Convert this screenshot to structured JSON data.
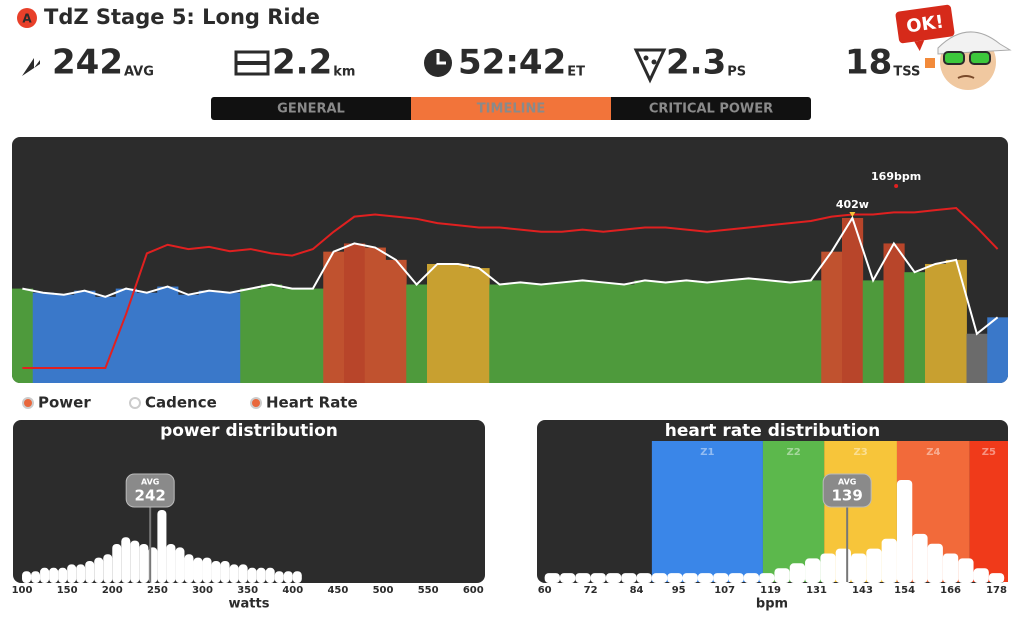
{
  "header": {
    "badge": "A",
    "title": "TdZ Stage 5: Long Ride"
  },
  "stats": [
    {
      "value": 242,
      "unit": "AVG"
    },
    {
      "value": 2.2,
      "unit": "km"
    },
    {
      "value": "52:42",
      "unit": "ET"
    },
    {
      "value": 2.3,
      "unit": "PS"
    },
    {
      "value": 18,
      "unit": "TSS"
    }
  ],
  "avatar_text": "OK!",
  "tabs": {
    "items": [
      "GENERAL",
      "TIMELINE",
      "CRITICAL POWER"
    ],
    "active": 1
  },
  "timeline": {
    "power": {
      "name": "Power",
      "values": [
        230,
        220,
        215,
        225,
        210,
        230,
        220,
        235,
        215,
        225,
        220,
        230,
        240,
        230,
        230,
        320,
        340,
        330,
        300,
        240,
        290,
        290,
        280,
        240,
        245,
        240,
        245,
        250,
        245,
        240,
        250,
        245,
        250,
        245,
        250,
        255,
        250,
        245,
        250,
        320,
        402,
        250,
        340,
        270,
        290,
        300,
        120,
        160
      ],
      "colors": [
        "#4e9a3c",
        "#3a78c9",
        "#3a78c9",
        "#3a78c9",
        "#3a78c9",
        "#3a78c9",
        "#3a78c9",
        "#3a78c9",
        "#3a78c9",
        "#3a78c9",
        "#3a78c9",
        "#4e9a3c",
        "#4e9a3c",
        "#4e9a3c",
        "#4e9a3c",
        "#c0522f",
        "#b8452a",
        "#c0522f",
        "#c0522f",
        "#4e9a3c",
        "#c8a030",
        "#c8a030",
        "#c8a030",
        "#4e9a3c",
        "#4e9a3c",
        "#4e9a3c",
        "#4e9a3c",
        "#4e9a3c",
        "#4e9a3c",
        "#4e9a3c",
        "#4e9a3c",
        "#4e9a3c",
        "#4e9a3c",
        "#4e9a3c",
        "#4e9a3c",
        "#4e9a3c",
        "#4e9a3c",
        "#4e9a3c",
        "#4e9a3c",
        "#c0522f",
        "#b8452a",
        "#4e9a3c",
        "#b8452a",
        "#4e9a3c",
        "#c8a030",
        "#c8a030",
        "#6b6b6b",
        "#3a78c9"
      ],
      "color": "#ffffff",
      "annotation": "402w"
    },
    "heart_rate": {
      "name": "Heart Rate",
      "values": [
        95,
        95,
        95,
        95,
        95,
        120,
        148,
        152,
        150,
        151,
        149,
        150,
        148,
        147,
        150,
        158,
        165,
        166,
        165,
        164,
        162,
        161,
        160,
        160,
        159,
        158,
        158,
        159,
        158,
        159,
        160,
        160,
        159,
        158,
        159,
        160,
        161,
        162,
        163,
        165,
        166,
        166,
        167,
        167,
        168,
        169,
        160,
        150
      ],
      "color": "#e02020",
      "annotation": "169bpm"
    }
  },
  "legend": [
    {
      "name": "Power",
      "color": "#e8673c"
    },
    {
      "name": "Cadence",
      "color": "#ffffff"
    },
    {
      "name": "Heart Rate",
      "color": "#e8673c"
    }
  ],
  "power_distribution": {
    "title": "power distribution",
    "xlabel": "watts",
    "bins": [
      100,
      110,
      120,
      130,
      140,
      150,
      160,
      170,
      180,
      190,
      200,
      210,
      220,
      230,
      240,
      250,
      260,
      270,
      280,
      290,
      300,
      310,
      320,
      330,
      340,
      350,
      360,
      370,
      380,
      390,
      400,
      410
    ],
    "counts": [
      2,
      2,
      3,
      3,
      3,
      4,
      4,
      5,
      6,
      7,
      10,
      12,
      11,
      10,
      9,
      20,
      10,
      9,
      7,
      6,
      6,
      5,
      5,
      4,
      4,
      3,
      3,
      3,
      2,
      2,
      2
    ],
    "xlim": [
      90,
      613
    ],
    "xticks": [
      100,
      150,
      200,
      250,
      300,
      350,
      400,
      450,
      500,
      550,
      600
    ],
    "avg_label": "AVG",
    "avg": 242
  },
  "heart_rate_distribution": {
    "title": "heart rate distribution",
    "xlabel": "bpm",
    "bins": [
      60,
      64,
      68,
      72,
      76,
      80,
      84,
      88,
      92,
      96,
      100,
      104,
      108,
      112,
      116,
      120,
      124,
      128,
      132,
      136,
      140,
      144,
      148,
      152,
      156,
      160,
      164,
      168,
      172,
      176,
      180
    ],
    "counts": [
      1,
      1,
      1,
      1,
      1,
      1,
      1,
      1,
      1,
      1,
      1,
      1,
      1,
      1,
      1,
      2,
      3,
      4,
      5,
      6,
      5,
      6,
      8,
      20,
      9,
      7,
      5,
      4,
      2,
      1
    ],
    "xlim": [
      58,
      181
    ],
    "xticks": [
      60,
      72,
      84,
      95,
      107,
      119,
      131,
      143,
      154,
      166,
      178
    ],
    "zones": [
      {
        "label": "Z1",
        "from": 88,
        "to": 117,
        "color": "#3a86e8"
      },
      {
        "label": "Z2",
        "from": 117,
        "to": 133,
        "color": "#5cb84c"
      },
      {
        "label": "Z3",
        "from": 133,
        "to": 152,
        "color": "#f7c53a"
      },
      {
        "label": "Z4",
        "from": 152,
        "to": 171,
        "color": "#f26a3a"
      },
      {
        "label": "Z5",
        "from": 171,
        "to": 181,
        "color": "#f03a1a"
      }
    ],
    "avg_label": "AVG",
    "avg": 139
  }
}
